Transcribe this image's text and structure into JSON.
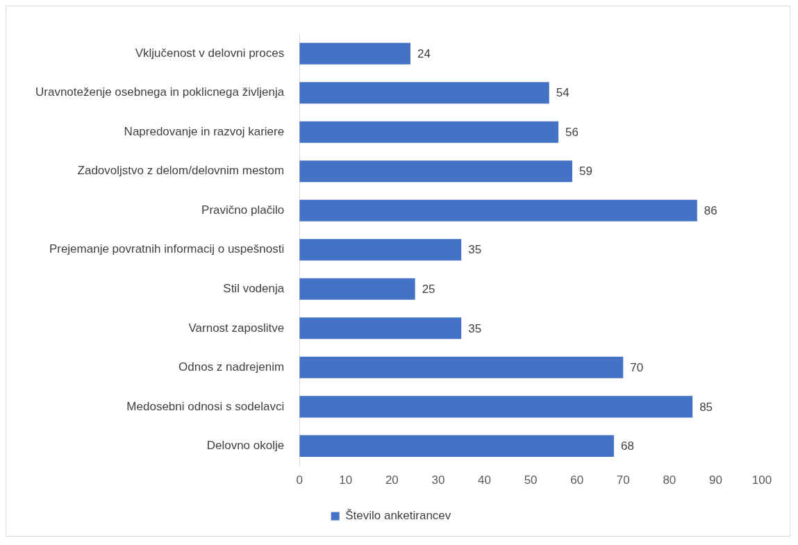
{
  "chart_data": {
    "type": "bar",
    "orientation": "horizontal",
    "categories": [
      "Vključenost v delovni proces",
      "Uravnoteženje osebnega in poklicnega življenja",
      "Napredovanje in razvoj kariere",
      "Zadovoljstvo z delom/delovnim mestom",
      "Pravično plačilo",
      "Prejemanje povratnih informacij o uspešnosti",
      "Stil vodenja",
      "Varnost zaposlitve",
      "Odnos z nadrejenim",
      "Medosebni odnosi s sodelavci",
      "Delovno okolje"
    ],
    "series": [
      {
        "name": "Število anketirancev",
        "color": "#4472c4",
        "values": [
          24,
          54,
          56,
          59,
          86,
          35,
          25,
          35,
          70,
          85,
          68
        ]
      }
    ],
    "xlim": [
      0,
      100
    ],
    "xticks": [
      0,
      10,
      20,
      30,
      40,
      50,
      60,
      70,
      80,
      90,
      100
    ],
    "grid": false,
    "legend": "bottom",
    "data_labels": true
  }
}
